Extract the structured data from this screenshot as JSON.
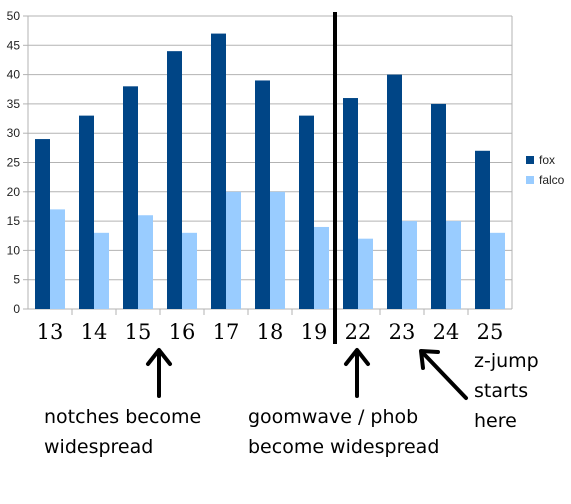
{
  "chart_data": {
    "type": "bar",
    "categories": [
      "13",
      "14",
      "15",
      "16",
      "17",
      "18",
      "19",
      "22",
      "23",
      "24",
      "25"
    ],
    "series": [
      {
        "name": "fox",
        "values": [
          29,
          33,
          38,
          44,
          47,
          39,
          33,
          36,
          40,
          35,
          27
        ],
        "color": "#004586"
      },
      {
        "name": "falco",
        "values": [
          17,
          13,
          16,
          13,
          20,
          20,
          14,
          12,
          15,
          15,
          13
        ],
        "color": "#99ccff"
      }
    ],
    "ylim": [
      0,
      50
    ],
    "yticks": [
      "0",
      "5",
      "10",
      "15",
      "20",
      "25",
      "30",
      "35",
      "40",
      "45",
      "50"
    ],
    "grid": true,
    "legend": "right",
    "title": "",
    "xlabel": "",
    "ylabel": "",
    "divider_between": [
      "19",
      "22"
    ],
    "annotations": [
      {
        "lines": [
          "notches become",
          "widespread"
        ],
        "arrow_points_to": "16"
      },
      {
        "lines": [
          "goomwave / phob",
          "become widespread"
        ],
        "arrow_points_to": "22"
      },
      {
        "lines": [
          "z-jump",
          "starts",
          "here"
        ],
        "arrow_points_to": "23"
      }
    ]
  }
}
